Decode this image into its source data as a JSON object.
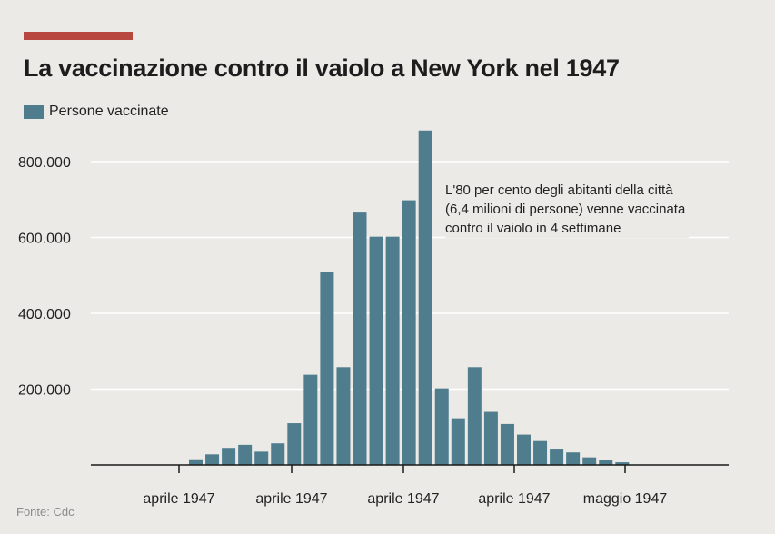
{
  "chart_data": {
    "type": "bar",
    "title": "La vaccinazione contro il vaiolo a New York nel 1947",
    "legend": [
      "Persone vaccinate"
    ],
    "legend_position": "top-left",
    "series": [
      {
        "name": "Persone vaccinate",
        "color": "#4f7d8e",
        "values": [
          15000,
          28000,
          45000,
          53000,
          35000,
          57000,
          110000,
          238000,
          510000,
          258000,
          668000,
          602000,
          602000,
          698000,
          882000,
          202000,
          123000,
          258000,
          140000,
          108000,
          80000,
          63000,
          43000,
          33000,
          20000,
          13000,
          7000
        ]
      }
    ],
    "x_tick_labels": [
      "aprile 1947",
      "aprile 1947",
      "aprile 1947",
      "aprile 1947",
      "maggio 1947"
    ],
    "y_ticks": [
      200000,
      400000,
      600000,
      800000
    ],
    "y_tick_labels": [
      "200.000",
      "400.000",
      "600.000",
      "800.000"
    ],
    "ylim": [
      0,
      900000
    ],
    "grid": "horizontal",
    "annotation": [
      "L'80 per cento degli abitanti della città",
      "(6,4 milioni di persone) venne vaccinata",
      "contro il vaiolo in 4 settimane"
    ],
    "source": "Fonte: Cdc"
  },
  "colors": {
    "accent": "#b8473f",
    "bar": "#4f7d8e",
    "grid": "#ffffff",
    "axis": "#1a1a1a"
  }
}
